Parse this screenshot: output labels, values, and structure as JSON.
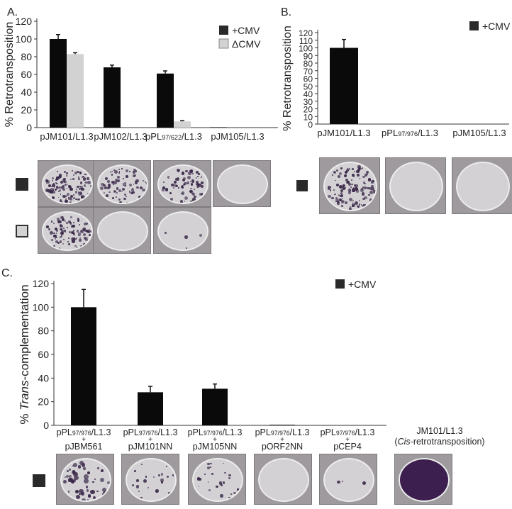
{
  "colors": {
    "black": "#0a0a0a",
    "dark": "#2a2a2a",
    "gray": "#d2d2d2",
    "plate_bg": "#c9c5c9",
    "plate_fill": "#d4d1d5",
    "colony": "#3b2a4a"
  },
  "panels": {
    "A": {
      "letter": "A.",
      "chart_data": {
        "type": "bar",
        "categories": [
          "pJM101/L1.3",
          "pJM102/L1.3",
          "pPL97/622/L1.3",
          "pJM105/L1.3"
        ],
        "series": [
          {
            "name": "+CMV",
            "values": [
              100,
              68,
              61,
              0.5
            ],
            "errors": [
              5,
              2.5,
              3,
              0
            ]
          },
          {
            "name": "ΔCMV",
            "values": [
              83,
              0,
              7,
              0
            ],
            "errors": [
              1.5,
              0,
              0.8,
              0
            ]
          }
        ],
        "ylabel": "% Retrotransposition",
        "yticks": [
          "0",
          "20",
          "40",
          "60",
          "80",
          "100",
          "120"
        ],
        "ylim": [
          0,
          120
        ],
        "legend": "top-right"
      },
      "row_labels": [
        "+CMV",
        "ΔCMV"
      ],
      "plates": [
        [
          {
            "density": 0.85,
            "sample": "pJM101/L1.3 +CMV"
          },
          {
            "density": 0.55,
            "sample": "pJM102/L1.3 +CMV"
          },
          {
            "density": 0.5,
            "sample": "pPL97/622/L1.3 +CMV"
          },
          {
            "density": 0,
            "sample": "pJM105/L1.3 +CMV"
          }
        ],
        [
          {
            "density": 0.7,
            "sample": "pJM101/L1.3 ΔCMV"
          },
          {
            "density": 0,
            "sample": "pJM102/L1.3 ΔCMV"
          },
          {
            "density": 0.03,
            "sample": "pPL97/622/L1.3 ΔCMV"
          }
        ]
      ]
    },
    "B": {
      "letter": "B.",
      "chart_data": {
        "type": "bar",
        "categories": [
          "pJM101/L1.3",
          "pPL97/976/L1.3",
          "pJM105/L1.3"
        ],
        "series": [
          {
            "name": "+CMV",
            "values": [
              100,
              0,
              0
            ],
            "errors": [
              11,
              0,
              0
            ]
          }
        ],
        "ylabel": "% Retrotransposition",
        "yticks": [
          "0",
          "10",
          "20",
          "30",
          "40",
          "50",
          "60",
          "70",
          "80",
          "90",
          "100",
          "110",
          "120"
        ],
        "ylim": [
          0,
          120
        ],
        "legend": "top-right"
      },
      "plates": [
        {
          "density": 0.9,
          "sample": "pJM101/L1.3"
        },
        {
          "density": 0,
          "sample": "pPL97/976/L1.3"
        },
        {
          "density": 0,
          "sample": "pJM105/L1.3"
        }
      ]
    },
    "C": {
      "letter": "C.",
      "chart_data": {
        "type": "bar",
        "categories": [
          "pPL97/976/L1.3 + pJBM561",
          "pPL97/976/L1.3 + pJM101NN",
          "pPL97/976/L1.3 + pJM105NN",
          "pPL97/976/L1.3 + pORF2NN",
          "pPL97/976/L1.3 + pCEP4"
        ],
        "series": [
          {
            "name": "+CMV",
            "values": [
              100,
              28,
              31,
              0.5,
              0
            ],
            "errors": [
              15,
              5,
              4,
              0,
              0
            ]
          }
        ],
        "ylabel": "% Trans-complementation",
        "yticks": [
          "0",
          "20",
          "40",
          "60",
          "80",
          "100",
          "120"
        ],
        "ylim": [
          0,
          120
        ],
        "legend": "top-right"
      },
      "extra_label": [
        "JM101/L1.3",
        "(Cis-retrotransposition)"
      ],
      "plates": [
        {
          "density": 0.35,
          "big": true,
          "sample": "pJBM561"
        },
        {
          "density": 0.15,
          "sample": "pJM101NN"
        },
        {
          "density": 0.18,
          "sample": "pJM105NN"
        },
        {
          "density": 0,
          "sample": "pORF2NN"
        },
        {
          "density": 0.02,
          "sample": "pCEP4"
        },
        {
          "density": 1,
          "purple": true,
          "sample": "JM101/L1.3"
        }
      ]
    }
  }
}
